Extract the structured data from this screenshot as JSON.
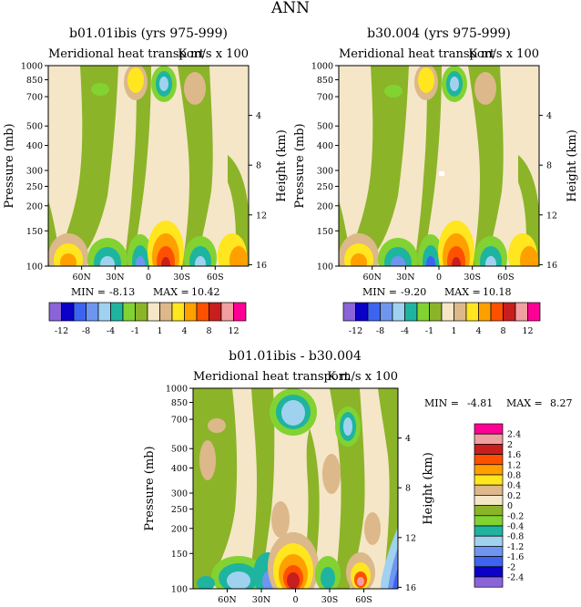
{
  "figure": {
    "title": "ANN"
  },
  "chart_data": [
    {
      "type": "heatmap",
      "title": "b01.01ibis (yrs 975-999)",
      "subtitle_left": "Meridional heat transport",
      "subtitle_right": "K m/s x 100",
      "xlabel": "",
      "ylabel": "Pressure (mb)",
      "ylabel_right": "Height (km)",
      "x_ticks": [
        "60N",
        "30N",
        "0",
        "30S",
        "60S"
      ],
      "x_values": [
        60,
        30,
        0,
        -30,
        -60
      ],
      "xlim": [
        90,
        -90
      ],
      "y_ticks": [
        100,
        150,
        200,
        250,
        300,
        400,
        500,
        700,
        850,
        1000
      ],
      "ylim": [
        1000,
        100
      ],
      "y_right_ticks": [
        4,
        8,
        12,
        16
      ],
      "min_label": "MIN =",
      "min_value": "-8.13",
      "max_label": "MAX =",
      "max_value": "10.42",
      "colorbar_labels": [
        "-12",
        "-8",
        "-4",
        "-1",
        "1",
        "4",
        "8",
        "12"
      ],
      "levels": [
        -12,
        -10,
        -8,
        -6,
        -4,
        -2,
        -1,
        -0.5,
        0.5,
        1,
        2,
        4,
        6,
        8,
        10,
        12
      ],
      "colors": [
        "#8a64d8",
        "#0a00c8",
        "#3c64f0",
        "#6e96f0",
        "#a0d2f0",
        "#1eb4a0",
        "#82d232",
        "#8cb428",
        "#f5e6c8",
        "#dcb88a",
        "#ffe61e",
        "#ffa000",
        "#ff5000",
        "#c81e1e",
        "#f0a0a0",
        "#ff0096"
      ]
    },
    {
      "type": "heatmap",
      "title": "b30.004 (yrs 975-999)",
      "subtitle_left": "Meridional heat transport",
      "subtitle_right": "K m/s x 100",
      "xlabel": "",
      "ylabel": "Pressure (mb)",
      "ylabel_right": "Height (km)",
      "x_ticks": [
        "60N",
        "30N",
        "0",
        "30S",
        "60S"
      ],
      "x_values": [
        60,
        30,
        0,
        -30,
        -60
      ],
      "xlim": [
        90,
        -90
      ],
      "y_ticks": [
        100,
        150,
        200,
        250,
        300,
        400,
        500,
        700,
        850,
        1000
      ],
      "ylim": [
        1000,
        100
      ],
      "y_right_ticks": [
        4,
        8,
        12,
        16
      ],
      "min_label": "MIN =",
      "min_value": "-9.20",
      "max_label": "MAX =",
      "max_value": "10.18",
      "colorbar_labels": [
        "-12",
        "-8",
        "-4",
        "-1",
        "1",
        "4",
        "8",
        "12"
      ],
      "levels": [
        -12,
        -10,
        -8,
        -6,
        -4,
        -2,
        -1,
        -0.5,
        0.5,
        1,
        2,
        4,
        6,
        8,
        10,
        12
      ],
      "colors": [
        "#8a64d8",
        "#0a00c8",
        "#3c64f0",
        "#6e96f0",
        "#a0d2f0",
        "#1eb4a0",
        "#82d232",
        "#8cb428",
        "#f5e6c8",
        "#dcb88a",
        "#ffe61e",
        "#ffa000",
        "#ff5000",
        "#c81e1e",
        "#f0a0a0",
        "#ff0096"
      ]
    },
    {
      "type": "heatmap",
      "title": "b01.01ibis - b30.004",
      "subtitle_left": "Meridional heat transport",
      "subtitle_right": "K m/s x 100",
      "xlabel": "",
      "ylabel": "Pressure (mb)",
      "ylabel_right": "Height (km)",
      "x_ticks": [
        "60N",
        "30N",
        "0",
        "30S",
        "60S"
      ],
      "x_values": [
        60,
        30,
        0,
        -30,
        -60
      ],
      "xlim": [
        90,
        -90
      ],
      "y_ticks": [
        100,
        150,
        200,
        250,
        300,
        400,
        500,
        700,
        850,
        1000
      ],
      "ylim": [
        1000,
        100
      ],
      "y_right_ticks": [
        4,
        8,
        12,
        16
      ],
      "min_label": "MIN =",
      "min_value": "-4.81",
      "max_label": "MAX =",
      "max_value": "8.27",
      "colorbar_labels": [
        "2.4",
        "2",
        "1.6",
        "1.2",
        "0.8",
        "0.4",
        "0.2",
        "0",
        "-0.2",
        "-0.4",
        "-0.8",
        "-1.2",
        "-1.6",
        "-2",
        "-2.4"
      ],
      "levels": [
        2.4,
        2,
        1.6,
        1.2,
        0.8,
        0.4,
        0.2,
        0,
        -0.2,
        -0.4,
        -0.8,
        -1.2,
        -1.6,
        -2,
        -2.4
      ],
      "colors": [
        "#ff0096",
        "#f0a0a0",
        "#c81e1e",
        "#ff5000",
        "#ffa000",
        "#ffe61e",
        "#dcb88a",
        "#f5e6c8",
        "#8cb428",
        "#82d232",
        "#1eb4a0",
        "#a0d2f0",
        "#6e96f0",
        "#3c64f0",
        "#0a00c8",
        "#8a64d8"
      ]
    }
  ]
}
